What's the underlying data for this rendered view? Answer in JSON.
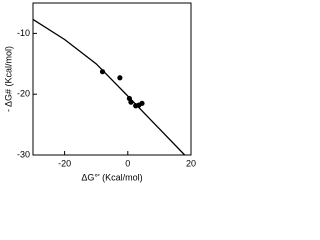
{
  "chart_data": {
    "type": "scatter",
    "x_label": "ΔG°' (Kcal/mol)",
    "y_label": "- ΔG# (Kcal/mol)",
    "xlim": [
      -30,
      20
    ],
    "xticks": [
      -20,
      0,
      20
    ],
    "ylim": [
      -30,
      -5
    ],
    "yticks": [
      -10,
      -20,
      -30
    ],
    "line": {
      "color": "#000000",
      "x": [
        -30,
        -20,
        -10,
        0,
        10,
        18
      ],
      "y": [
        -7.7,
        -11,
        -15,
        -20.3,
        -25.7,
        -30
      ]
    },
    "points": {
      "color": "#000000",
      "x": [
        -8,
        -2.5,
        0.5,
        1,
        2.5,
        3.5,
        4.5
      ],
      "y": [
        -16.3,
        -17.3,
        -20.7,
        -21.3,
        -21.9,
        -21.8,
        -21.5
      ]
    }
  }
}
